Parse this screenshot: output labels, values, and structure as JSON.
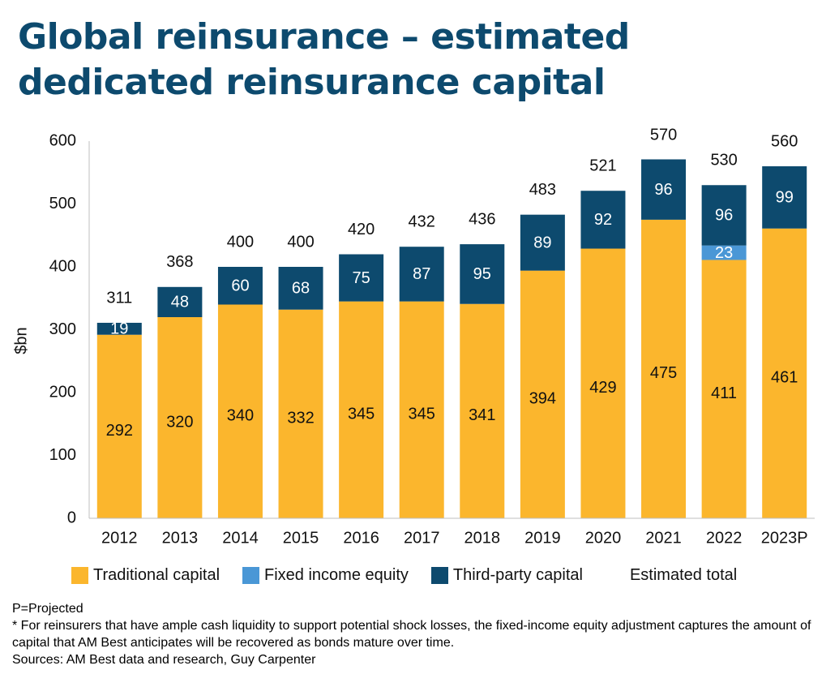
{
  "title_lines": [
    "Global reinsurance – estimated",
    "dedicated reinsurance capital"
  ],
  "colors": {
    "traditional": "#fbb62d",
    "fixed_income": "#4a97d6",
    "third_party": "#0d4a6e",
    "title": "#0d4a6e"
  },
  "chart_data": {
    "type": "bar",
    "stacked": true,
    "title": "Global reinsurance – estimated dedicated reinsurance capital",
    "ylabel": "$bn",
    "xlabel": "",
    "ylim": [
      0,
      600
    ],
    "yticks": [
      "0",
      "100",
      "200",
      "300",
      "400",
      "500",
      "600"
    ],
    "categories": [
      "2012",
      "2013",
      "2014",
      "2015",
      "2016",
      "2017",
      "2018",
      "2019",
      "2020",
      "2021",
      "2022",
      "2023P"
    ],
    "series": [
      {
        "name": "Traditional capital",
        "values": [
          292,
          320,
          340,
          332,
          345,
          345,
          341,
          394,
          429,
          475,
          411,
          461
        ]
      },
      {
        "name": "Fixed income equity",
        "values": [
          0,
          0,
          0,
          0,
          0,
          0,
          0,
          0,
          0,
          0,
          23,
          0
        ]
      },
      {
        "name": "Third-party capital",
        "values": [
          19,
          48,
          60,
          68,
          75,
          87,
          95,
          89,
          92,
          96,
          96,
          99
        ]
      }
    ],
    "totals_name": "Estimated total",
    "totals": [
      311,
      368,
      400,
      400,
      420,
      432,
      436,
      483,
      521,
      570,
      530,
      560
    ],
    "legend_position": "bottom",
    "grid": false
  },
  "notes": [
    "P=Projected",
    "* For reinsurers that have ample cash liquidity to support potential shock losses, the fixed-income equity adjustment captures the amount of capital that AM Best anticipates will be recovered as bonds mature over time.",
    "Sources: AM Best data and research, Guy Carpenter"
  ]
}
